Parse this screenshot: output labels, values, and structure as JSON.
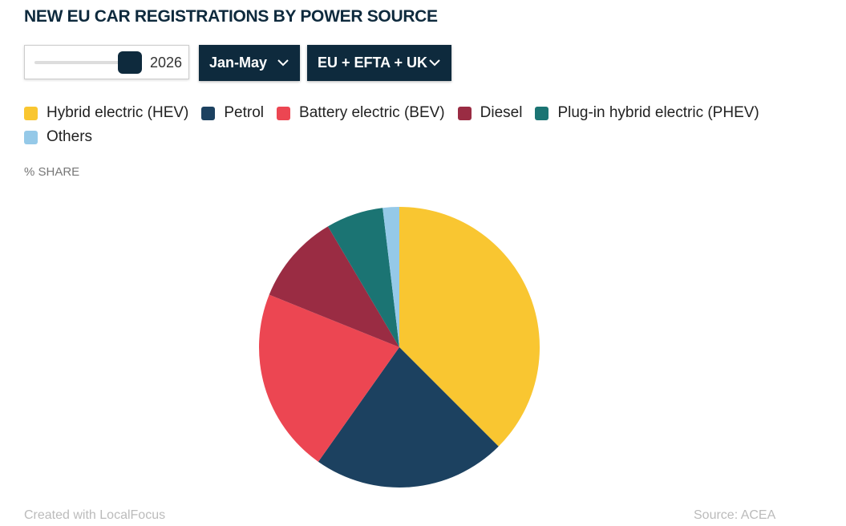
{
  "controls": {
    "year": "2026",
    "period": "Jan-May",
    "region": "EU + EFTA + UK"
  },
  "chart_data": {
    "type": "pie",
    "title": "NEW EU CAR REGISTRATIONS BY POWER SOURCE",
    "subtitle": "% SHARE",
    "categories": [
      "Hybrid electric (HEV)",
      "Petrol",
      "Battery electric (BEV)",
      "Diesel",
      "Plug-in hybrid electric (PHEV)",
      "Others"
    ],
    "values": [
      37.5,
      22.3,
      21.3,
      10.4,
      6.6,
      1.9
    ],
    "colors": [
      "#f9c631",
      "#1c4160",
      "#ec4652",
      "#9a2c43",
      "#1b7473",
      "#95c9e8"
    ]
  },
  "footer": {
    "credit": "Created with LocalFocus",
    "source_label": "Source:",
    "source": "ACEA"
  }
}
